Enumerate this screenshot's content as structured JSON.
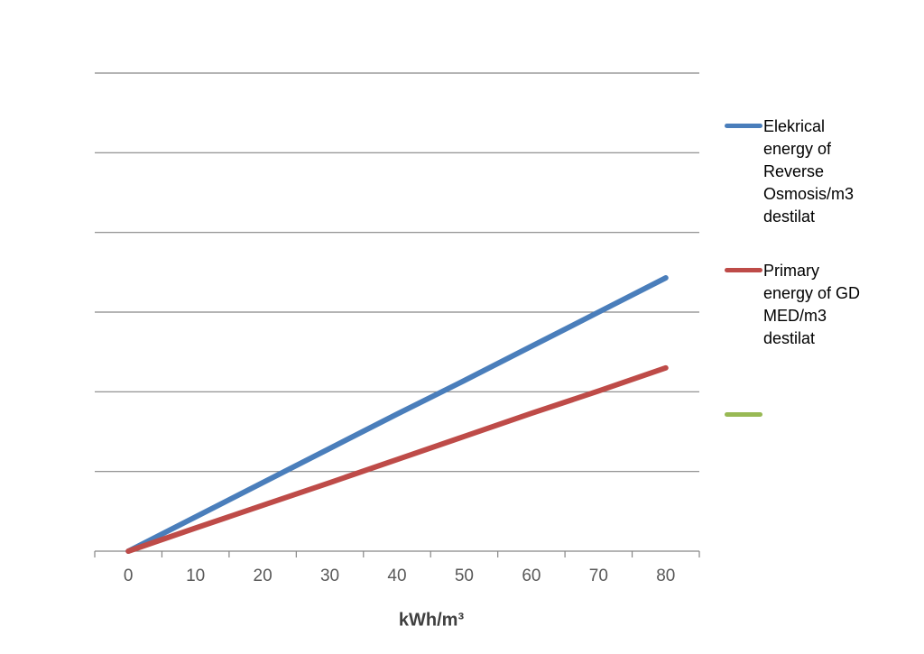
{
  "chart_data": {
    "type": "line",
    "x_label": "kWh/m³",
    "categories": [
      "0",
      "10",
      "20",
      "30",
      "40",
      "50",
      "60",
      "70",
      "80"
    ],
    "series": [
      {
        "name": "Elekrical energy of Reverse Osmosis/m3 destilat",
        "color": "#4a7ebb",
        "values": [
          0,
          0.43,
          0.86,
          1.29,
          1.72,
          2.14,
          2.57,
          3.0,
          3.43
        ]
      },
      {
        "name": "Primary energy of GD MED/m3 destilat",
        "color": "#be4b48",
        "values": [
          0,
          0.29,
          0.575,
          0.86,
          1.15,
          1.44,
          1.73,
          2.01,
          2.3
        ]
      },
      {
        "color": "#98b954",
        "values": [
          null,
          null,
          null,
          null,
          null,
          null,
          null,
          null,
          null
        ]
      }
    ],
    "ylim": [
      0,
      6
    ],
    "yticks": [
      0,
      1,
      2,
      3,
      4,
      5,
      6
    ],
    "grid": true,
    "show_ytick_labels": false,
    "legend": "right"
  }
}
